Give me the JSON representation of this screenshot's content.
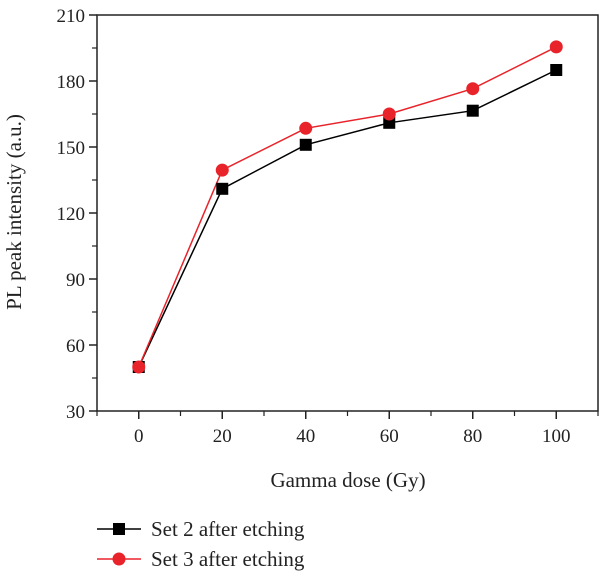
{
  "chart_data": {
    "type": "line",
    "xlabel": "Gamma dose (Gy)",
    "ylabel": "PL peak intensity (a.u.)",
    "x": [
      0,
      20,
      40,
      60,
      80,
      100
    ],
    "xlim": [
      -10,
      110
    ],
    "ylim": [
      30,
      210
    ],
    "x_ticks": [
      "0",
      "20",
      "40",
      "60",
      "80",
      "100"
    ],
    "y_ticks": [
      "30",
      "60",
      "90",
      "120",
      "150",
      "180",
      "210"
    ],
    "grid": false,
    "legend_position": "bottom-left",
    "series": [
      {
        "name": "Set 2 after etching",
        "values": [
          50,
          131,
          151,
          161,
          166.5,
          185
        ],
        "color": "#000000",
        "marker": "square"
      },
      {
        "name": "Set 3 after etching",
        "values": [
          50,
          139.5,
          158.5,
          165,
          176.5,
          195.5
        ],
        "color": "#e8232a",
        "marker": "circle"
      }
    ]
  }
}
